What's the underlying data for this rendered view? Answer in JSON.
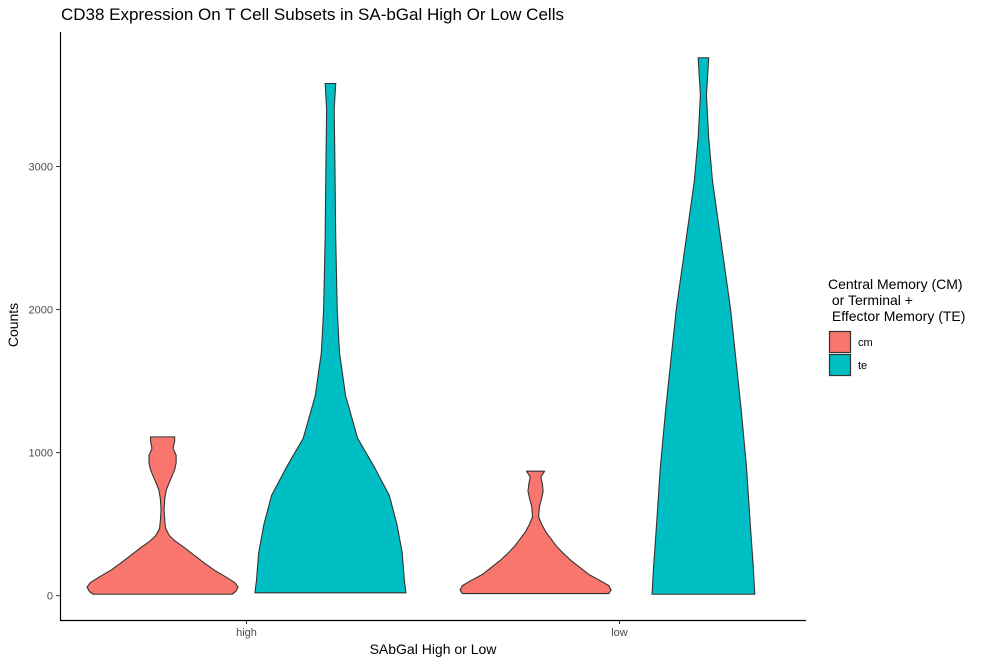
{
  "chart_data": {
    "type": "violin",
    "title": "CD38 Expression On T Cell Subsets in SA-bGal High Or Low Cells",
    "xlabel": "SAbGal High or Low",
    "ylabel": "Counts",
    "categories": [
      "high",
      "low"
    ],
    "ylim": [
      -170,
      3940
    ],
    "yticks": [
      0,
      1000,
      2000,
      3000
    ],
    "grid": false,
    "legend": {
      "title_lines": [
        "Central Memory (CM)",
        " or Terminal +",
        " Effector Memory (TE)"
      ],
      "placement": "right"
    },
    "series": [
      {
        "name": "cm",
        "color": "#F8766D",
        "violins": [
          {
            "category": "high",
            "min": 10,
            "max": 1110,
            "profile": [
              [
                10,
                0.92
              ],
              [
                30,
                0.97
              ],
              [
                60,
                1.0
              ],
              [
                90,
                0.96
              ],
              [
                130,
                0.84
              ],
              [
                180,
                0.68
              ],
              [
                230,
                0.55
              ],
              [
                290,
                0.4
              ],
              [
                340,
                0.28
              ],
              [
                380,
                0.17
              ],
              [
                420,
                0.09
              ],
              [
                470,
                0.04
              ],
              [
                520,
                0.03
              ],
              [
                600,
                0.02
              ],
              [
                680,
                0.03
              ],
              [
                740,
                0.05
              ],
              [
                780,
                0.08
              ],
              [
                830,
                0.12
              ],
              [
                880,
                0.16
              ],
              [
                930,
                0.18
              ],
              [
                980,
                0.18
              ],
              [
                1030,
                0.14
              ],
              [
                1080,
                0.16
              ],
              [
                1110,
                0.16
              ]
            ]
          },
          {
            "category": "low",
            "min": 15,
            "max": 870,
            "profile": [
              [
                15,
                0.97
              ],
              [
                40,
                1.0
              ],
              [
                70,
                0.97
              ],
              [
                110,
                0.84
              ],
              [
                150,
                0.7
              ],
              [
                200,
                0.58
              ],
              [
                250,
                0.46
              ],
              [
                300,
                0.36
              ],
              [
                350,
                0.27
              ],
              [
                400,
                0.2
              ],
              [
                450,
                0.13
              ],
              [
                500,
                0.08
              ],
              [
                550,
                0.04
              ],
              [
                620,
                0.05
              ],
              [
                680,
                0.08
              ],
              [
                730,
                0.1
              ],
              [
                780,
                0.09
              ],
              [
                830,
                0.07
              ],
              [
                870,
                0.12
              ]
            ]
          }
        ]
      },
      {
        "name": "te",
        "color": "#00BFC4",
        "violins": [
          {
            "category": "high",
            "min": 20,
            "max": 3580,
            "profile": [
              [
                20,
                1.0
              ],
              [
                100,
                0.98
              ],
              [
                300,
                0.95
              ],
              [
                500,
                0.88
              ],
              [
                700,
                0.78
              ],
              [
                900,
                0.58
              ],
              [
                1100,
                0.36
              ],
              [
                1400,
                0.2
              ],
              [
                1700,
                0.12
              ],
              [
                2000,
                0.09
              ],
              [
                2500,
                0.07
              ],
              [
                3000,
                0.06
              ],
              [
                3400,
                0.05
              ],
              [
                3580,
                0.07
              ]
            ]
          },
          {
            "category": "low",
            "min": 10,
            "max": 3760,
            "profile": [
              [
                10,
                0.68
              ],
              [
                200,
                0.66
              ],
              [
                500,
                0.62
              ],
              [
                900,
                0.57
              ],
              [
                1300,
                0.5
              ],
              [
                1700,
                0.42
              ],
              [
                2000,
                0.36
              ],
              [
                2300,
                0.28
              ],
              [
                2600,
                0.2
              ],
              [
                2900,
                0.12
              ],
              [
                3200,
                0.07
              ],
              [
                3500,
                0.04
              ],
              [
                3760,
                0.07
              ]
            ]
          }
        ]
      }
    ]
  }
}
